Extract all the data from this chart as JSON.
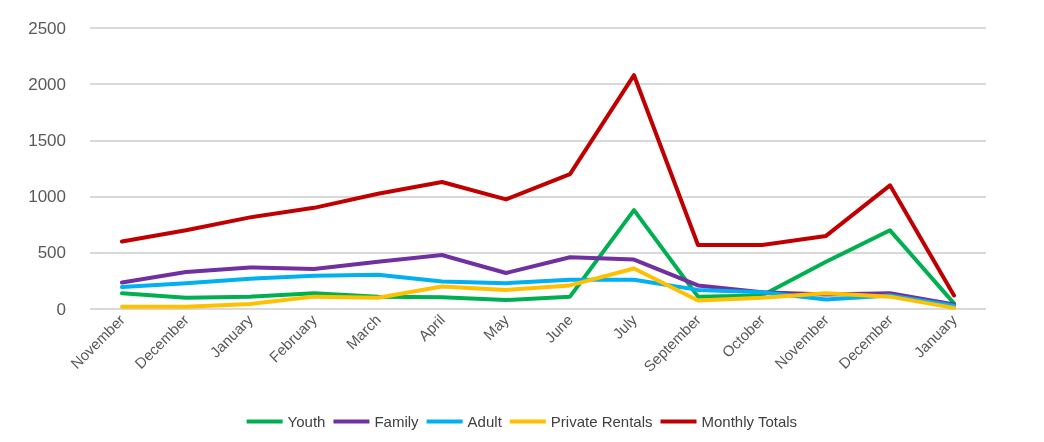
{
  "chart_data": {
    "type": "line",
    "categories": [
      "November",
      "December",
      "January",
      "February",
      "March",
      "April",
      "May",
      "June",
      "July",
      "September",
      "October",
      "November",
      "December",
      "January"
    ],
    "series": [
      {
        "name": "Youth",
        "color": "#00b050",
        "values": [
          140,
          100,
          110,
          140,
          110,
          105,
          80,
          110,
          880,
          110,
          120,
          420,
          700,
          50
        ]
      },
      {
        "name": "Family",
        "color": "#7030a0",
        "values": [
          235,
          330,
          370,
          355,
          420,
          480,
          320,
          460,
          440,
          210,
          150,
          130,
          140,
          40
        ]
      },
      {
        "name": "Adult",
        "color": "#00b0f0",
        "values": [
          195,
          230,
          270,
          295,
          305,
          245,
          230,
          260,
          260,
          170,
          150,
          85,
          120,
          30
        ]
      },
      {
        "name": "Private Rentals",
        "color": "#ffc000",
        "values": [
          20,
          20,
          45,
          110,
          100,
          200,
          170,
          210,
          360,
          75,
          100,
          140,
          110,
          10
        ]
      },
      {
        "name": "Monthly Totals",
        "color": "#c00000",
        "values": [
          600,
          700,
          815,
          900,
          1025,
          1130,
          975,
          1200,
          2080,
          570,
          570,
          650,
          1100,
          120
        ]
      }
    ],
    "ylim": [
      0,
      2500
    ],
    "yticks": [
      0,
      500,
      1000,
      1500,
      2000,
      2500
    ],
    "grid": "y",
    "legend": "bottom",
    "marker": "none",
    "line_style": "solid"
  }
}
